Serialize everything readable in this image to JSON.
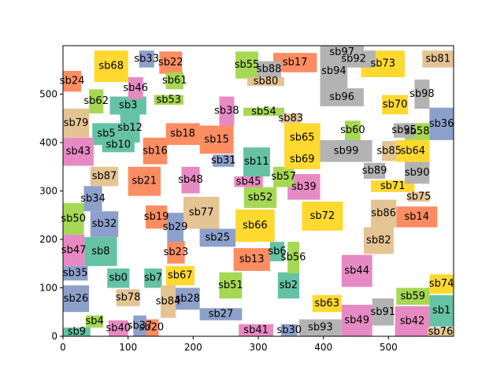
{
  "chart_data": {
    "type": "rectangles",
    "xlim": [
      0,
      600
    ],
    "ylim": [
      0,
      600
    ],
    "x_ticks": [
      0,
      100,
      200,
      300,
      400,
      500
    ],
    "y_ticks": [
      0,
      100,
      200,
      300,
      400,
      500
    ],
    "grid": false,
    "palette": {
      "teal": "#66c2a5",
      "orange": "#fc8d62",
      "blue": "#8da0cb",
      "pink": "#e78ac3",
      "green": "#a6d854",
      "yellow": "#ffd92f",
      "tan": "#e5c494",
      "gray": "#b3b3b3"
    },
    "boxes": [
      {
        "label": "sb0",
        "x0": 68,
        "x1": 102,
        "y0": 100,
        "y1": 140,
        "color": "teal"
      },
      {
        "label": "sb1",
        "x0": 563,
        "x1": 600,
        "y0": 20,
        "y1": 85,
        "color": "teal"
      },
      {
        "label": "sb2",
        "x0": 330,
        "x1": 363,
        "y0": 78,
        "y1": 132,
        "color": "teal"
      },
      {
        "label": "sb3",
        "x0": 72,
        "x1": 128,
        "y0": 458,
        "y1": 495,
        "color": "teal"
      },
      {
        "label": "sb4",
        "x0": 35,
        "x1": 62,
        "y0": 18,
        "y1": 43,
        "color": "green"
      },
      {
        "label": "sb5",
        "x0": 45,
        "x1": 88,
        "y0": 395,
        "y1": 440,
        "color": "teal"
      },
      {
        "label": "sb6",
        "x0": 318,
        "x1": 340,
        "y0": 155,
        "y1": 195,
        "color": "teal"
      },
      {
        "label": "sb7",
        "x0": 125,
        "x1": 152,
        "y0": 100,
        "y1": 140,
        "color": "teal"
      },
      {
        "label": "sb8",
        "x0": 33,
        "x1": 83,
        "y0": 145,
        "y1": 205,
        "color": "teal"
      },
      {
        "label": "sb9",
        "x0": 0,
        "x1": 42,
        "y0": 0,
        "y1": 18,
        "color": "teal"
      },
      {
        "label": "sb10",
        "x0": 60,
        "x1": 110,
        "y0": 380,
        "y1": 410,
        "color": "teal"
      },
      {
        "label": "sb11",
        "x0": 277,
        "x1": 318,
        "y0": 330,
        "y1": 390,
        "color": "teal"
      },
      {
        "label": "sb12",
        "x0": 88,
        "x1": 118,
        "y0": 400,
        "y1": 460,
        "color": "teal"
      },
      {
        "label": "sb13",
        "x0": 262,
        "x1": 318,
        "y0": 135,
        "y1": 182,
        "color": "orange"
      },
      {
        "label": "sb14",
        "x0": 512,
        "x1": 575,
        "y0": 225,
        "y1": 268,
        "color": "orange"
      },
      {
        "label": "sb15",
        "x0": 210,
        "x1": 262,
        "y0": 377,
        "y1": 435,
        "color": "orange"
      },
      {
        "label": "sb16",
        "x0": 123,
        "x1": 160,
        "y0": 355,
        "y1": 410,
        "color": "orange"
      },
      {
        "label": "sb17",
        "x0": 323,
        "x1": 390,
        "y0": 545,
        "y1": 585,
        "color": "orange"
      },
      {
        "label": "sb18",
        "x0": 158,
        "x1": 210,
        "y0": 395,
        "y1": 440,
        "color": "orange"
      },
      {
        "label": "sb19",
        "x0": 127,
        "x1": 160,
        "y0": 222,
        "y1": 270,
        "color": "orange"
      },
      {
        "label": "sb20",
        "x0": 125,
        "x1": 147,
        "y0": 0,
        "y1": 35,
        "color": "orange"
      },
      {
        "label": "sb21",
        "x0": 100,
        "x1": 150,
        "y0": 290,
        "y1": 350,
        "color": "orange"
      },
      {
        "label": "sb22",
        "x0": 148,
        "x1": 183,
        "y0": 542,
        "y1": 588,
        "color": "orange"
      },
      {
        "label": "sb23",
        "x0": 160,
        "x1": 187,
        "y0": 150,
        "y1": 197,
        "color": "orange"
      },
      {
        "label": "sb24",
        "x0": 0,
        "x1": 28,
        "y0": 505,
        "y1": 548,
        "color": "orange"
      },
      {
        "label": "sb25",
        "x0": 210,
        "x1": 265,
        "y0": 185,
        "y1": 222,
        "color": "blue"
      },
      {
        "label": "sb26",
        "x0": 0,
        "x1": 40,
        "y0": 50,
        "y1": 105,
        "color": "blue"
      },
      {
        "label": "sb27",
        "x0": 210,
        "x1": 275,
        "y0": 33,
        "y1": 58,
        "color": "blue"
      },
      {
        "label": "sb28",
        "x0": 173,
        "x1": 210,
        "y0": 55,
        "y1": 100,
        "color": "blue"
      },
      {
        "label": "sb29",
        "x0": 160,
        "x1": 185,
        "y0": 195,
        "y1": 255,
        "color": "blue"
      },
      {
        "label": "sb30",
        "x0": 335,
        "x1": 360,
        "y0": 0,
        "y1": 25,
        "color": "blue"
      },
      {
        "label": "sb31",
        "x0": 230,
        "x1": 263,
        "y0": 350,
        "y1": 375,
        "color": "blue"
      },
      {
        "label": "sb32",
        "x0": 42,
        "x1": 85,
        "y0": 205,
        "y1": 258,
        "color": "blue"
      },
      {
        "label": "sb33",
        "x0": 117,
        "x1": 140,
        "y0": 555,
        "y1": 590,
        "color": "blue"
      },
      {
        "label": "sb34",
        "x0": 32,
        "x1": 60,
        "y0": 258,
        "y1": 310,
        "color": "blue"
      },
      {
        "label": "sb35",
        "x0": 0,
        "x1": 38,
        "y0": 115,
        "y1": 145,
        "color": "blue"
      },
      {
        "label": "sb36",
        "x0": 563,
        "x1": 600,
        "y0": 405,
        "y1": 472,
        "color": "blue"
      },
      {
        "label": "sb37",
        "x0": 108,
        "x1": 128,
        "y0": 0,
        "y1": 43,
        "color": "blue"
      },
      {
        "label": "sb38",
        "x0": 240,
        "x1": 263,
        "y0": 435,
        "y1": 495,
        "color": "pink"
      },
      {
        "label": "sb39",
        "x0": 345,
        "x1": 395,
        "y0": 282,
        "y1": 335,
        "color": "pink"
      },
      {
        "label": "sb40",
        "x0": 70,
        "x1": 100,
        "y0": 0,
        "y1": 33,
        "color": "pink"
      },
      {
        "label": "sb41",
        "x0": 270,
        "x1": 323,
        "y0": 0,
        "y1": 25,
        "color": "pink"
      },
      {
        "label": "sb42",
        "x0": 510,
        "x1": 563,
        "y0": 0,
        "y1": 62,
        "color": "pink"
      },
      {
        "label": "sb43",
        "x0": 0,
        "x1": 47,
        "y0": 352,
        "y1": 410,
        "color": "pink"
      },
      {
        "label": "sb44",
        "x0": 428,
        "x1": 475,
        "y0": 102,
        "y1": 168,
        "color": "pink"
      },
      {
        "label": "sb45",
        "x0": 263,
        "x1": 307,
        "y0": 308,
        "y1": 330,
        "color": "pink"
      },
      {
        "label": "sb46",
        "x0": 100,
        "x1": 123,
        "y0": 490,
        "y1": 535,
        "color": "pink"
      },
      {
        "label": "sb47",
        "x0": 0,
        "x1": 33,
        "y0": 145,
        "y1": 210,
        "color": "pink"
      },
      {
        "label": "sb48",
        "x0": 182,
        "x1": 210,
        "y0": 295,
        "y1": 350,
        "color": "pink"
      },
      {
        "label": "sb49",
        "x0": 428,
        "x1": 475,
        "y0": 0,
        "y1": 65,
        "color": "pink"
      },
      {
        "label": "sb50",
        "x0": 0,
        "x1": 32,
        "y0": 210,
        "y1": 275,
        "color": "green"
      },
      {
        "label": "sb51",
        "x0": 240,
        "x1": 275,
        "y0": 78,
        "y1": 132,
        "color": "green"
      },
      {
        "label": "sb52",
        "x0": 278,
        "x1": 328,
        "y0": 265,
        "y1": 308,
        "color": "green"
      },
      {
        "label": "sb53",
        "x0": 140,
        "x1": 185,
        "y0": 478,
        "y1": 498,
        "color": "green"
      },
      {
        "label": "sb54",
        "x0": 277,
        "x1": 340,
        "y0": 455,
        "y1": 472,
        "color": "green"
      },
      {
        "label": "sb55",
        "x0": 265,
        "x1": 300,
        "y0": 532,
        "y1": 588,
        "color": "green"
      },
      {
        "label": "sb56",
        "x0": 345,
        "x1": 363,
        "y0": 130,
        "y1": 195,
        "color": "green"
      },
      {
        "label": "sb57",
        "x0": 323,
        "x1": 355,
        "y0": 308,
        "y1": 350,
        "color": "green"
      },
      {
        "label": "sb58",
        "x0": 525,
        "x1": 563,
        "y0": 405,
        "y1": 440,
        "color": "green"
      },
      {
        "label": "sb59",
        "x0": 512,
        "x1": 563,
        "y0": 65,
        "y1": 100,
        "color": "green"
      },
      {
        "label": "sb60",
        "x0": 433,
        "x1": 457,
        "y0": 405,
        "y1": 445,
        "color": "green"
      },
      {
        "label": "sb61",
        "x0": 158,
        "x1": 185,
        "y0": 510,
        "y1": 545,
        "color": "green"
      },
      {
        "label": "sb62",
        "x0": 40,
        "x1": 62,
        "y0": 460,
        "y1": 510,
        "color": "green"
      },
      {
        "label": "sb63",
        "x0": 383,
        "x1": 428,
        "y0": 50,
        "y1": 85,
        "color": "yellow"
      },
      {
        "label": "sb64",
        "x0": 512,
        "x1": 563,
        "y0": 360,
        "y1": 405,
        "color": "yellow"
      },
      {
        "label": "sb65",
        "x0": 340,
        "x1": 395,
        "y0": 380,
        "y1": 440,
        "color": "yellow"
      },
      {
        "label": "sb66",
        "x0": 265,
        "x1": 325,
        "y0": 195,
        "y1": 262,
        "color": "yellow"
      },
      {
        "label": "sb67",
        "x0": 158,
        "x1": 202,
        "y0": 105,
        "y1": 145,
        "color": "yellow"
      },
      {
        "label": "sb68",
        "x0": 48,
        "x1": 100,
        "y0": 525,
        "y1": 590,
        "color": "yellow"
      },
      {
        "label": "sb69",
        "x0": 340,
        "x1": 395,
        "y0": 345,
        "y1": 385,
        "color": "yellow"
      },
      {
        "label": "sb70",
        "x0": 490,
        "x1": 530,
        "y0": 458,
        "y1": 498,
        "color": "yellow"
      },
      {
        "label": "sb71",
        "x0": 473,
        "x1": 540,
        "y0": 298,
        "y1": 322,
        "color": "yellow"
      },
      {
        "label": "sb72",
        "x0": 367,
        "x1": 430,
        "y0": 218,
        "y1": 278,
        "color": "yellow"
      },
      {
        "label": "sb73",
        "x0": 458,
        "x1": 525,
        "y0": 535,
        "y1": 590,
        "color": "yellow"
      },
      {
        "label": "sb74",
        "x0": 563,
        "x1": 600,
        "y0": 88,
        "y1": 128,
        "color": "yellow"
      },
      {
        "label": "sb75",
        "x0": 530,
        "x1": 563,
        "y0": 278,
        "y1": 298,
        "color": "tan"
      },
      {
        "label": "sb76",
        "x0": 560,
        "x1": 600,
        "y0": 0,
        "y1": 18,
        "color": "tan"
      },
      {
        "label": "sb77",
        "x0": 185,
        "x1": 240,
        "y0": 222,
        "y1": 288,
        "color": "tan"
      },
      {
        "label": "sb78",
        "x0": 82,
        "x1": 118,
        "y0": 62,
        "y1": 97,
        "color": "tan"
      },
      {
        "label": "sb79",
        "x0": 0,
        "x1": 40,
        "y0": 410,
        "y1": 470,
        "color": "tan"
      },
      {
        "label": "sb80",
        "x0": 283,
        "x1": 340,
        "y0": 517,
        "y1": 535,
        "color": "tan"
      },
      {
        "label": "sb81",
        "x0": 552,
        "x1": 600,
        "y0": 555,
        "y1": 590,
        "color": "tan"
      },
      {
        "label": "sb82",
        "x0": 462,
        "x1": 508,
        "y0": 170,
        "y1": 225,
        "color": "tan"
      },
      {
        "label": "sb83",
        "x0": 335,
        "x1": 365,
        "y0": 440,
        "y1": 460,
        "color": "tan"
      },
      {
        "label": "sb84",
        "x0": 150,
        "x1": 173,
        "y0": 38,
        "y1": 105,
        "color": "tan"
      },
      {
        "label": "sb85",
        "x0": 490,
        "x1": 512,
        "y0": 362,
        "y1": 403,
        "color": "tan"
      },
      {
        "label": "sb86",
        "x0": 473,
        "x1": 512,
        "y0": 225,
        "y1": 282,
        "color": "tan"
      },
      {
        "label": "sb87",
        "x0": 42,
        "x1": 85,
        "y0": 310,
        "y1": 350,
        "color": "tan"
      },
      {
        "label": "sb88",
        "x0": 298,
        "x1": 335,
        "y0": 535,
        "y1": 568,
        "color": "gray"
      },
      {
        "label": "sb89",
        "x0": 462,
        "x1": 495,
        "y0": 325,
        "y1": 358,
        "color": "gray"
      },
      {
        "label": "sb90",
        "x0": 525,
        "x1": 563,
        "y0": 315,
        "y1": 360,
        "color": "gray"
      },
      {
        "label": "sb91",
        "x0": 475,
        "x1": 508,
        "y0": 22,
        "y1": 78,
        "color": "gray"
      },
      {
        "label": "sb92",
        "x0": 413,
        "x1": 480,
        "y0": 555,
        "y1": 590,
        "color": "gray"
      },
      {
        "label": "sb93",
        "x0": 363,
        "x1": 428,
        "y0": 0,
        "y1": 35,
        "color": "gray"
      },
      {
        "label": "sb94",
        "x0": 395,
        "x1": 437,
        "y0": 510,
        "y1": 585,
        "color": "gray"
      },
      {
        "label": "sb95",
        "x0": 508,
        "x1": 540,
        "y0": 410,
        "y1": 440,
        "color": "gray"
      },
      {
        "label": "sb96",
        "x0": 395,
        "x1": 462,
        "y0": 475,
        "y1": 512,
        "color": "gray"
      },
      {
        "label": "sb97",
        "x0": 395,
        "x1": 462,
        "y0": 572,
        "y1": 600,
        "color": "gray"
      },
      {
        "label": "sb98",
        "x0": 540,
        "x1": 563,
        "y0": 470,
        "y1": 530,
        "color": "gray"
      },
      {
        "label": "sb99",
        "x0": 395,
        "x1": 475,
        "y0": 360,
        "y1": 405,
        "color": "gray"
      }
    ]
  }
}
